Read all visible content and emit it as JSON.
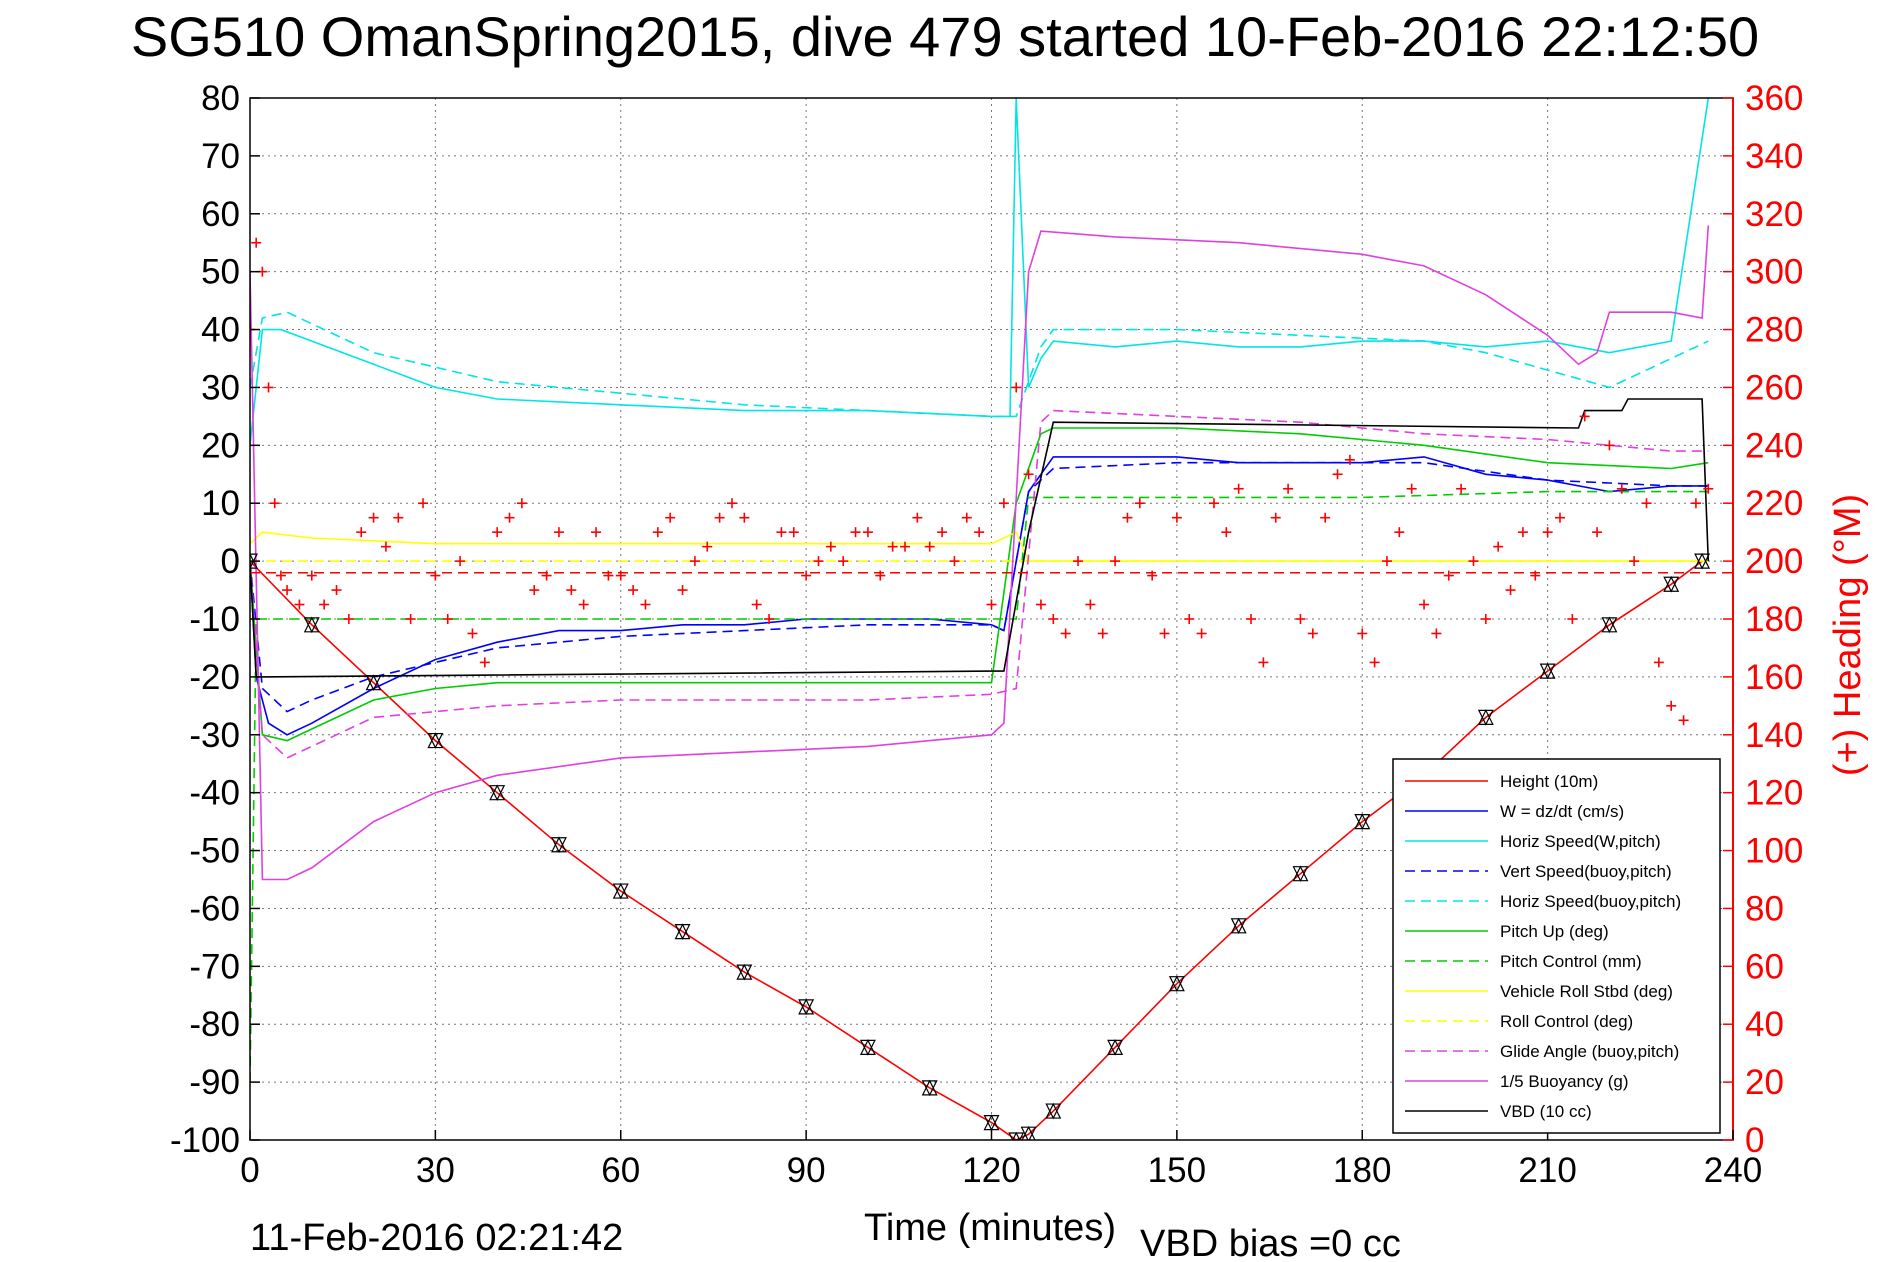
{
  "title": "SG510 OmanSpring2015, dive 479 started 10-Feb-2016 22:12:50",
  "footer": {
    "timestamp": "11-Feb-2016 02:21:42",
    "vbd_bias": "VBD bias =0 cc"
  },
  "colors": {
    "axis": "#000000",
    "heading": "#ff0000",
    "grid": "#555555"
  },
  "chart_data": {
    "type": "line",
    "title": "SG510 OmanSpring2015, dive 479 started 10-Feb-2016 22:12:50",
    "xlabel": "Time (minutes)",
    "ylabel": "",
    "y2label": "(+) Heading (°M)",
    "xlim": [
      0,
      240
    ],
    "ylim": [
      -100,
      80
    ],
    "y2lim": [
      0,
      360
    ],
    "grid": true,
    "legend_position": "bottom-right",
    "x_ticks": [
      "0",
      "30",
      "60",
      "90",
      "120",
      "150",
      "180",
      "210",
      "240"
    ],
    "y_ticks": [
      "80",
      "70",
      "60",
      "50",
      "40",
      "30",
      "20",
      "10",
      "0",
      "-10",
      "-20",
      "-30",
      "-40",
      "-50",
      "-60",
      "-70",
      "-80",
      "-90",
      "-100"
    ],
    "y2_ticks": [
      "360",
      "340",
      "320",
      "300",
      "280",
      "260",
      "240",
      "220",
      "200",
      "180",
      "160",
      "140",
      "120",
      "100",
      "80",
      "60",
      "40",
      "20",
      "0"
    ],
    "series": [
      {
        "name": "Height (10m)",
        "color": "#ff0000",
        "dash": "solid",
        "x": [
          0,
          10,
          20,
          30,
          40,
          50,
          60,
          70,
          80,
          90,
          100,
          110,
          120,
          124,
          126,
          130,
          140,
          150,
          160,
          170,
          180,
          190,
          200,
          210,
          220,
          230,
          235
        ],
        "y": [
          0,
          -11,
          -21,
          -31,
          -40,
          -49,
          -57,
          -64,
          -71,
          -77,
          -84,
          -91,
          -97,
          -100,
          -99,
          -95,
          -84,
          -73,
          -63,
          -54,
          -45,
          -37,
          -27,
          -19,
          -11,
          -4,
          0
        ]
      },
      {
        "name": "W = dz/dt (cm/s)",
        "color": "#0000ff",
        "dash": "solid",
        "x": [
          0,
          1,
          3,
          6,
          10,
          20,
          30,
          40,
          50,
          60,
          70,
          80,
          90,
          100,
          110,
          120,
          122,
          126,
          130,
          140,
          150,
          160,
          170,
          180,
          190,
          200,
          210,
          220,
          230,
          236
        ],
        "y": [
          0,
          -20,
          -28,
          -30,
          -28,
          -22,
          -17,
          -14,
          -12,
          -12,
          -11,
          -11,
          -10,
          -10,
          -10,
          -11,
          -12,
          12,
          18,
          18,
          18,
          17,
          17,
          17,
          18,
          15,
          14,
          12,
          13,
          13
        ]
      },
      {
        "name": "Horiz Speed(W,pitch)",
        "color": "#00e5e5",
        "dash": "solid",
        "x": [
          0,
          2,
          5,
          10,
          20,
          30,
          40,
          60,
          80,
          100,
          120,
          123,
          124,
          126,
          128,
          130,
          140,
          150,
          160,
          170,
          180,
          190,
          200,
          210,
          220,
          230,
          236
        ],
        "y": [
          20,
          40,
          40,
          38,
          34,
          30,
          28,
          27,
          26,
          26,
          25,
          25,
          80,
          30,
          35,
          38,
          37,
          38,
          37,
          37,
          38,
          38,
          37,
          38,
          36,
          38,
          80
        ]
      },
      {
        "name": "Vert Speed(buoy,pitch)",
        "color": "#0000ff",
        "dash": "dashed",
        "x": [
          0,
          2,
          6,
          10,
          20,
          40,
          60,
          80,
          100,
          120,
          122,
          126,
          130,
          150,
          170,
          190,
          210,
          230,
          236
        ],
        "y": [
          0,
          -22,
          -26,
          -24,
          -20,
          -15,
          -13,
          -12,
          -11,
          -11,
          -12,
          12,
          16,
          17,
          17,
          17,
          14,
          13,
          13
        ]
      },
      {
        "name": "Horiz Speed(buoy,pitch)",
        "color": "#00e5e5",
        "dash": "dashed",
        "x": [
          0,
          2,
          6,
          10,
          20,
          40,
          60,
          80,
          100,
          120,
          124,
          128,
          130,
          150,
          170,
          190,
          200,
          210,
          220,
          230,
          236
        ],
        "y": [
          30,
          42,
          43,
          41,
          36,
          31,
          29,
          27,
          26,
          25,
          25,
          37,
          40,
          40,
          39,
          38,
          36,
          33,
          30,
          35,
          38
        ]
      },
      {
        "name": "Pitch Up (deg)",
        "color": "#00cc00",
        "dash": "solid",
        "x": [
          0,
          2,
          6,
          10,
          20,
          30,
          40,
          60,
          80,
          100,
          120,
          124,
          128,
          130,
          150,
          170,
          190,
          210,
          230,
          236
        ],
        "y": [
          0,
          -30,
          -31,
          -29,
          -24,
          -22,
          -21,
          -21,
          -21,
          -21,
          -21,
          10,
          22,
          23,
          23,
          22,
          20,
          17,
          16,
          17
        ]
      },
      {
        "name": "Pitch Control (mm)",
        "color": "#00cc00",
        "dash": "dashed",
        "x": [
          0,
          1,
          2,
          40,
          80,
          120,
          124,
          126,
          150,
          180,
          210,
          236
        ],
        "y": [
          -90,
          -10,
          -10,
          -10,
          -10,
          -10,
          -10,
          11,
          11,
          11,
          12,
          12
        ]
      },
      {
        "name": "Vehicle Roll Stbd (deg)",
        "color": "#ffff00",
        "dash": "solid",
        "x": [
          0,
          2,
          10,
          30,
          60,
          90,
          120,
          124,
          126,
          150,
          180,
          210,
          236
        ],
        "y": [
          3,
          5,
          4,
          3,
          3,
          3,
          3,
          5,
          0,
          0,
          0,
          0,
          0
        ]
      },
      {
        "name": "Roll Control (deg)",
        "color": "#ffff00",
        "dash": "dashed",
        "x": [
          0,
          2,
          120,
          124,
          126,
          236
        ],
        "y": [
          0,
          0,
          0,
          0,
          0,
          0
        ]
      },
      {
        "name": "Glide Angle (buoy,pitch)",
        "color": "#e040e0",
        "dash": "dashed",
        "x": [
          0,
          2,
          6,
          10,
          20,
          40,
          60,
          80,
          100,
          120,
          124,
          128,
          130,
          150,
          170,
          190,
          210,
          230,
          236
        ],
        "y": [
          0,
          -30,
          -34,
          -32,
          -27,
          -25,
          -24,
          -24,
          -24,
          -23,
          -22,
          24,
          26,
          25,
          24,
          22,
          21,
          19,
          19
        ]
      },
      {
        "name": "1/5 Buoyancy (g)",
        "color": "#e040e0",
        "dash": "solid",
        "x": [
          0,
          2,
          6,
          10,
          20,
          30,
          40,
          60,
          80,
          100,
          120,
          122,
          126,
          128,
          140,
          160,
          180,
          190,
          200,
          210,
          215,
          218,
          220,
          230,
          235,
          236
        ],
        "y": [
          50,
          -55,
          -55,
          -53,
          -45,
          -40,
          -37,
          -34,
          -33,
          -32,
          -30,
          -28,
          50,
          57,
          56,
          55,
          53,
          51,
          46,
          39,
          34,
          36,
          43,
          43,
          42,
          58
        ]
      },
      {
        "name": "VBD (10 cc)",
        "color": "#000000",
        "dash": "solid",
        "x": [
          0,
          1,
          2,
          120,
          122,
          126,
          130,
          215,
          216,
          222,
          223,
          235,
          236
        ],
        "y": [
          0,
          -20,
          -20,
          -19,
          -19,
          5,
          24,
          23,
          26,
          26,
          28,
          28,
          0
        ]
      }
    ],
    "heading_series": {
      "name": "(+) Heading",
      "marker": "+",
      "color": "#ff0000",
      "reference_level": -2,
      "x": [
        0,
        1,
        2,
        3,
        4,
        5,
        6,
        8,
        10,
        12,
        14,
        16,
        18,
        20,
        22,
        24,
        26,
        28,
        30,
        32,
        34,
        36,
        38,
        40,
        42,
        44,
        46,
        48,
        50,
        52,
        54,
        56,
        58,
        60,
        62,
        64,
        66,
        68,
        70,
        72,
        74,
        76,
        78,
        80,
        82,
        84,
        86,
        88,
        90,
        92,
        94,
        96,
        98,
        100,
        102,
        104,
        106,
        108,
        110,
        112,
        114,
        116,
        118,
        120,
        122,
        124,
        126,
        128,
        130,
        132,
        134,
        136,
        138,
        140,
        142,
        144,
        146,
        148,
        150,
        152,
        154,
        156,
        158,
        160,
        162,
        164,
        166,
        168,
        170,
        172,
        174,
        176,
        178,
        180,
        182,
        184,
        186,
        188,
        190,
        192,
        194,
        196,
        198,
        200,
        202,
        204,
        206,
        208,
        210,
        212,
        214,
        216,
        218,
        220,
        222,
        224,
        226,
        228,
        230,
        232,
        234,
        236
      ],
      "y": [
        280,
        310,
        300,
        260,
        220,
        195,
        190,
        185,
        195,
        185,
        190,
        180,
        210,
        215,
        205,
        215,
        180,
        220,
        195,
        180,
        200,
        175,
        165,
        210,
        215,
        220,
        190,
        195,
        210,
        190,
        185,
        210,
        195,
        195,
        190,
        185,
        210,
        215,
        190,
        200,
        205,
        215,
        220,
        215,
        185,
        180,
        210,
        210,
        195,
        200,
        205,
        200,
        210,
        210,
        195,
        205,
        205,
        215,
        205,
        210,
        200,
        215,
        210,
        185,
        220,
        260,
        230,
        185,
        180,
        175,
        200,
        185,
        175,
        200,
        215,
        220,
        195,
        175,
        215,
        180,
        175,
        220,
        210,
        225,
        180,
        165,
        215,
        225,
        180,
        175,
        215,
        230,
        235,
        175,
        165,
        200,
        210,
        225,
        185,
        175,
        195,
        225,
        200,
        180,
        205,
        190,
        210,
        195,
        210,
        215,
        180,
        250,
        210,
        240,
        225,
        200,
        220,
        165,
        150,
        145,
        220,
        225
      ]
    }
  }
}
